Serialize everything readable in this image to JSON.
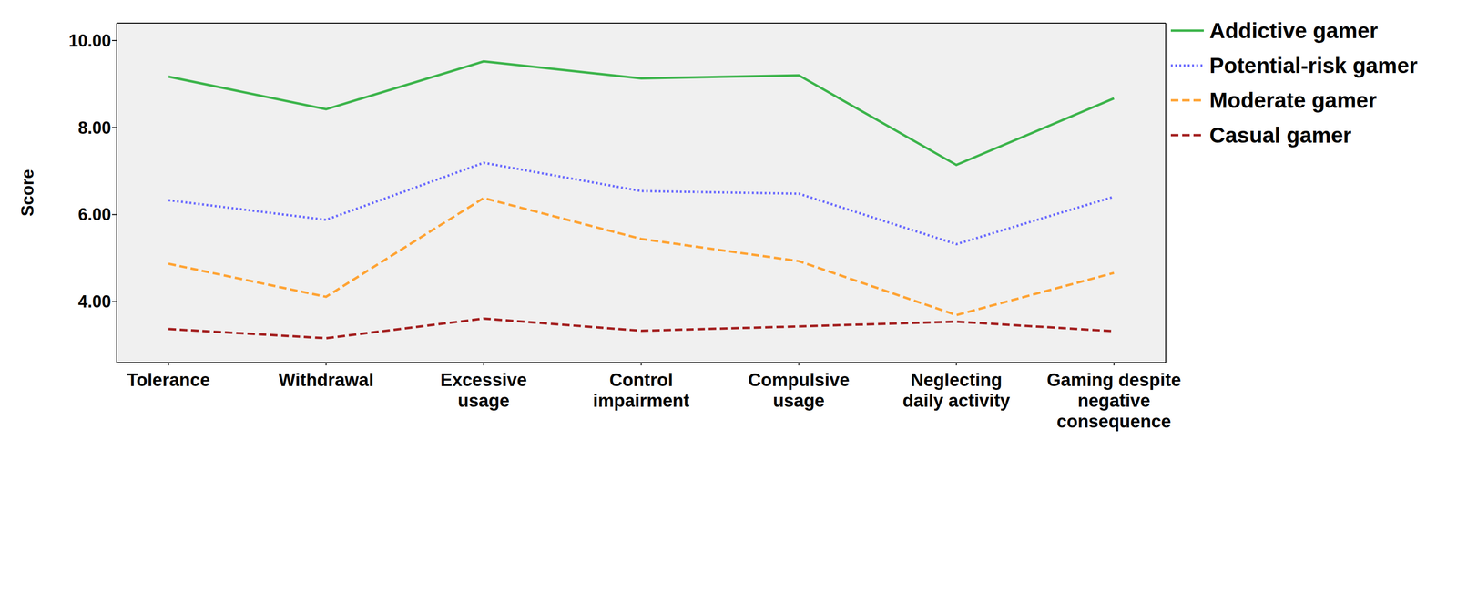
{
  "chart_data": {
    "type": "line",
    "y_label": "Score",
    "categories": [
      "Tolerance",
      "Withdrawal",
      "Excessive usage",
      "Control impairment",
      "Compulsive usage",
      "Neglecting daily activity",
      "Gaming despite negative consequence"
    ],
    "series": [
      {
        "name": "Addictive gamer",
        "color": "#3cb44b",
        "line_style": "solid",
        "values": [
          9.17,
          8.42,
          9.52,
          9.13,
          9.2,
          7.14,
          8.67
        ]
      },
      {
        "name": "Potential-risk gamer",
        "color": "#6b6bff",
        "line_style": "dotted",
        "values": [
          6.33,
          5.88,
          7.19,
          6.54,
          6.48,
          5.32,
          6.41
        ]
      },
      {
        "name": "Moderate gamer",
        "color": "#ffa333",
        "line_style": "dashed",
        "values": [
          4.87,
          4.11,
          6.38,
          5.44,
          4.93,
          3.69,
          4.66
        ]
      },
      {
        "name": "Casual gamer",
        "color": "#a31f1f",
        "line_style": "dashed",
        "values": [
          3.37,
          3.16,
          3.61,
          3.33,
          3.43,
          3.54,
          3.32
        ]
      }
    ],
    "ylim": [
      2.6,
      10.4
    ],
    "yticks": [
      {
        "value": 4,
        "label": "4.00"
      },
      {
        "value": 6,
        "label": "6.00"
      },
      {
        "value": 8,
        "label": "8.00"
      },
      {
        "value": 10,
        "label": "10.00"
      }
    ],
    "grid": false,
    "legend": "right"
  }
}
